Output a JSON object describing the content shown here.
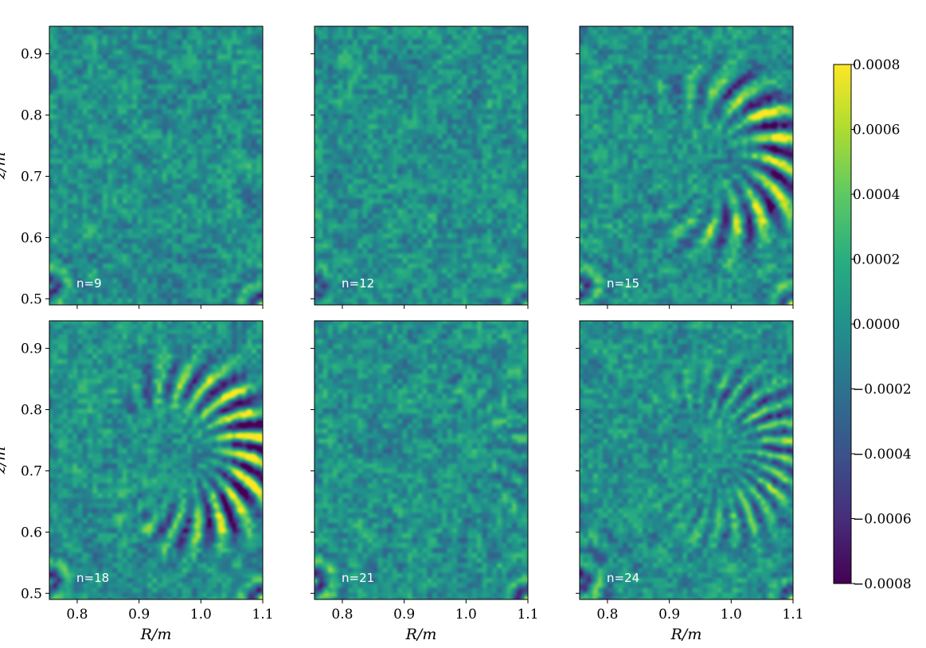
{
  "chart_data": {
    "type": "heatmap",
    "grid": {
      "rows": 2,
      "cols": 3
    },
    "xlabel": "R/m",
    "ylabel": "z/m",
    "xlim": [
      0.755,
      1.1
    ],
    "ylim": [
      0.49,
      0.945
    ],
    "x_ticks": [
      0.8,
      0.9,
      1.0,
      1.1
    ],
    "x_tick_labels": [
      "0.8",
      "0.9",
      "1.0",
      "1.1"
    ],
    "y_ticks": [
      0.5,
      0.6,
      0.7,
      0.8,
      0.9
    ],
    "y_tick_labels": [
      "0.5",
      "0.6",
      "0.7",
      "0.8",
      "0.9"
    ],
    "colormap": "viridis",
    "colorbar": {
      "range": [
        -0.0008,
        0.0008
      ],
      "ticks": [
        0.0008,
        0.0006,
        0.0004,
        0.0002,
        0.0,
        -0.0002,
        -0.0004,
        -0.0006,
        -0.0008
      ],
      "tick_labels": [
        "0.0008",
        "0.0006",
        "0.0004",
        "0.0002",
        "0.0000",
        "−0.0002",
        "−0.0004",
        "−0.0006",
        "−0.0008"
      ]
    },
    "panels": [
      {
        "label": "n=9",
        "ring_strength": 0.0001,
        "corner_strength": 0.0009
      },
      {
        "label": "n=12",
        "ring_strength": 5e-05,
        "corner_strength": 0.0007
      },
      {
        "label": "n=15",
        "ring_strength": 0.00085,
        "corner_strength": 0.001
      },
      {
        "label": "n=18",
        "ring_strength": 0.00095,
        "corner_strength": 0.001
      },
      {
        "label": "n=21",
        "ring_strength": 0.00015,
        "corner_strength": 0.001
      },
      {
        "label": "n=24",
        "ring_strength": 0.0005,
        "corner_strength": 0.001
      }
    ]
  }
}
